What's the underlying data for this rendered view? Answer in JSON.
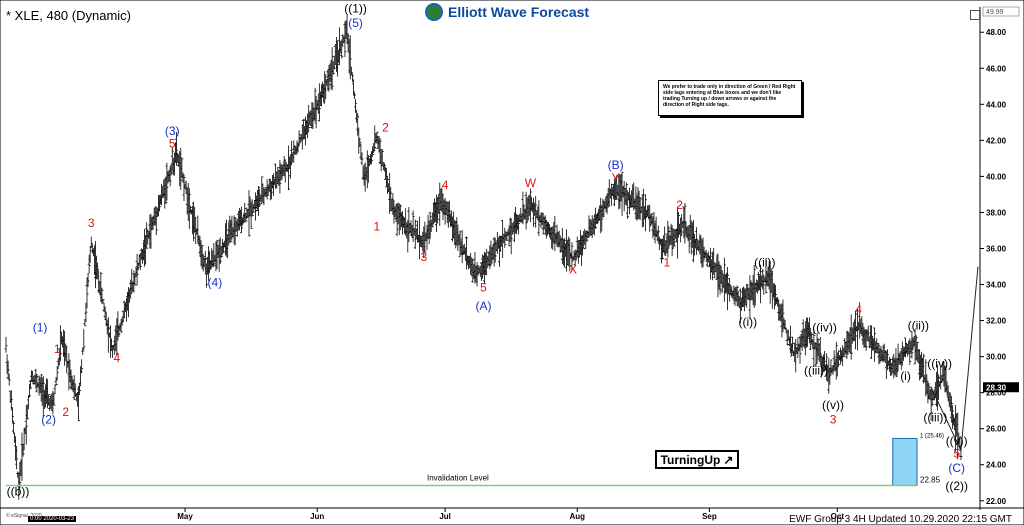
{
  "header": {
    "symbol": "* XLE, 480 (Dynamic)",
    "logo_text": "Elliott Wave Forecast"
  },
  "notice": "We prefer to trade only in direction of Green / Red Right side tags entering at Blue boxes and we don't like trading Turning up / down arrows or against the direction of Right side tags.",
  "turning_up": "TurningUp",
  "turning_up_arrow": "↗",
  "footer": "EWF Group 3 4H Updated 10.29.2020 22:15 GMT",
  "stamp": "© eSignal, 2020",
  "date_box": "0:00 2020-03-23",
  "colors": {
    "blue_box": "#8fd3f5",
    "green_line": "#7ccd7c",
    "wave_blue": "#1530c8",
    "wave_red": "#e01010",
    "price_tag": "#000000"
  },
  "chart_data": {
    "type": "bar",
    "subtype": "ohlc",
    "ylim": [
      21.6,
      49.4
    ],
    "yticks": [
      22,
      24,
      26,
      28,
      30,
      32,
      34,
      36,
      38,
      40,
      42,
      44,
      46,
      48
    ],
    "ytick_labels": [
      "22.00",
      "24.00",
      "26.00",
      "28.00",
      "30.00",
      "32.00",
      "34.00",
      "36.00",
      "38.00",
      "40.00",
      "42.00",
      "44.00",
      "46.00",
      "48.00"
    ],
    "x_range": [
      "2020-03-20",
      "2020-11-03"
    ],
    "xticks": [
      {
        "date": "2020-05-01",
        "label": "May"
      },
      {
        "date": "2020-06-01",
        "label": "Jun"
      },
      {
        "date": "2020-07-01",
        "label": "Jul"
      },
      {
        "date": "2020-08-01",
        "label": "Aug"
      },
      {
        "date": "2020-09-01",
        "label": "Sep"
      },
      {
        "date": "2020-10-01",
        "label": "Oct"
      }
    ],
    "price_path": [
      [
        "2020-03-20",
        30.5
      ],
      [
        "2020-03-23",
        22.88
      ],
      [
        "2020-03-26",
        29.0
      ],
      [
        "2020-03-31",
        27.2
      ],
      [
        "2020-04-02",
        31.0
      ],
      [
        "2020-04-06",
        27.3
      ],
      [
        "2020-04-09",
        36.4
      ],
      [
        "2020-04-14",
        30.3
      ],
      [
        "2020-04-20",
        35.0
      ],
      [
        "2020-04-29",
        41.3
      ],
      [
        "2020-05-06",
        34.8
      ],
      [
        "2020-05-14",
        37.5
      ],
      [
        "2020-05-25",
        40.5
      ],
      [
        "2020-06-02",
        44.5
      ],
      [
        "2020-06-08",
        48.0
      ],
      [
        "2020-06-12",
        39.8
      ],
      [
        "2020-06-15",
        42.2
      ],
      [
        "2020-06-19",
        38.0
      ],
      [
        "2020-06-26",
        36.3
      ],
      [
        "2020-06-30",
        38.8
      ],
      [
        "2020-07-08",
        34.5
      ],
      [
        "2020-07-21",
        38.4
      ],
      [
        "2020-07-24",
        37.5
      ],
      [
        "2020-07-31",
        35.4
      ],
      [
        "2020-08-10",
        39.4
      ],
      [
        "2020-08-18",
        37.8
      ],
      [
        "2020-08-21",
        36.0
      ],
      [
        "2020-08-26",
        37.3
      ],
      [
        "2020-09-08",
        33.0
      ],
      [
        "2020-09-15",
        34.5
      ],
      [
        "2020-09-21",
        30.0
      ],
      [
        "2020-09-24",
        31.4
      ],
      [
        "2020-09-29",
        29.0
      ],
      [
        "2020-10-06",
        31.7
      ],
      [
        "2020-10-14",
        29.4
      ],
      [
        "2020-10-19",
        30.8
      ],
      [
        "2020-10-23",
        27.6
      ],
      [
        "2020-10-26",
        29.0
      ],
      [
        "2020-10-30",
        24.8
      ],
      [
        "2020-11-03",
        35.0
      ]
    ],
    "current_price": "28.30",
    "top_right_value": "49.99",
    "blue_box": {
      "x_start": "2020-10-14",
      "x_end": "2020-11-03",
      "y_top": 25.46,
      "y_bottom": 22.85,
      "top_label": "1 (25.46)",
      "bottom_label": "22.85"
    },
    "invalidation": {
      "value": 22.85,
      "label": "Invalidation Level"
    },
    "projection": {
      "from": [
        "2020-10-23",
        28.3
      ],
      "via": [
        "2020-10-30",
        24.8
      ],
      "to": [
        "2020-11-03",
        35.0
      ]
    },
    "wave_labels": [
      {
        "text": "((b))",
        "date": "2020-03-20",
        "price": 22.3,
        "color": "black",
        "big": true
      },
      {
        "text": "(1)",
        "date": "2020-03-28",
        "price": 31.4,
        "color": "blue"
      },
      {
        "text": "1",
        "date": "2020-04-01",
        "price": 30.2,
        "color": "red"
      },
      {
        "text": "(2)",
        "date": "2020-03-30",
        "price": 26.3,
        "color": "blue"
      },
      {
        "text": "2",
        "date": "2020-04-03",
        "price": 26.7,
        "color": "red"
      },
      {
        "text": "3",
        "date": "2020-04-09",
        "price": 37.2,
        "color": "red"
      },
      {
        "text": "4",
        "date": "2020-04-15",
        "price": 29.7,
        "color": "red"
      },
      {
        "text": "(3)",
        "date": "2020-04-28",
        "price": 42.3,
        "color": "blue"
      },
      {
        "text": "5",
        "date": "2020-04-28",
        "price": 41.6,
        "color": "red"
      },
      {
        "text": "(4)",
        "date": "2020-05-08",
        "price": 33.9,
        "color": "blue"
      },
      {
        "text": "((1))",
        "date": "2020-06-10",
        "price": 49.1,
        "color": "black"
      },
      {
        "text": "(5)",
        "date": "2020-06-10",
        "price": 48.3,
        "color": "blue"
      },
      {
        "text": "2",
        "date": "2020-06-17",
        "price": 42.5,
        "color": "red"
      },
      {
        "text": "1",
        "date": "2020-06-15",
        "price": 37.0,
        "color": "red"
      },
      {
        "text": "4",
        "date": "2020-07-01",
        "price": 39.3,
        "color": "red"
      },
      {
        "text": "3",
        "date": "2020-06-26",
        "price": 35.3,
        "color": "red"
      },
      {
        "text": "5",
        "date": "2020-07-10",
        "price": 33.6,
        "color": "red"
      },
      {
        "text": "(A)",
        "date": "2020-07-10",
        "price": 32.6,
        "color": "blue"
      },
      {
        "text": "W",
        "date": "2020-07-21",
        "price": 39.4,
        "color": "red"
      },
      {
        "text": "X",
        "date": "2020-07-31",
        "price": 34.6,
        "color": "red"
      },
      {
        "text": "(B)",
        "date": "2020-08-10",
        "price": 40.4,
        "color": "blue"
      },
      {
        "text": "Y",
        "date": "2020-08-10",
        "price": 39.7,
        "color": "red"
      },
      {
        "text": "2",
        "date": "2020-08-25",
        "price": 38.2,
        "color": "red"
      },
      {
        "text": "1",
        "date": "2020-08-22",
        "price": 35.0,
        "color": "red"
      },
      {
        "text": "((ii))",
        "date": "2020-09-14",
        "price": 35.0,
        "color": "black"
      },
      {
        "text": "((i))",
        "date": "2020-09-10",
        "price": 31.7,
        "color": "black"
      },
      {
        "text": "((iv))",
        "date": "2020-09-28",
        "price": 31.4,
        "color": "black"
      },
      {
        "text": "((iii))",
        "date": "2020-09-26",
        "price": 29.0,
        "color": "black"
      },
      {
        "text": "4",
        "date": "2020-10-06",
        "price": 32.4,
        "color": "red"
      },
      {
        "text": "((v))",
        "date": "2020-09-30",
        "price": 27.1,
        "color": "black"
      },
      {
        "text": "3",
        "date": "2020-09-30",
        "price": 26.3,
        "color": "red"
      },
      {
        "text": "((ii))",
        "date": "2020-10-20",
        "price": 31.5,
        "color": "black"
      },
      {
        "text": "(i)",
        "date": "2020-10-17",
        "price": 28.7,
        "color": "black"
      },
      {
        "text": "((iv))",
        "date": "2020-10-25",
        "price": 29.4,
        "color": "black"
      },
      {
        "text": "((iii))",
        "date": "2020-10-24",
        "price": 26.4,
        "color": "black"
      },
      {
        "text": "((v))",
        "date": "2020-10-29",
        "price": 25.1,
        "color": "black"
      },
      {
        "text": "5",
        "date": "2020-10-29",
        "price": 24.4,
        "color": "red"
      },
      {
        "text": "(C)",
        "date": "2020-10-29",
        "price": 23.6,
        "color": "blue"
      },
      {
        "text": "((2))",
        "date": "2020-10-29",
        "price": 22.6,
        "color": "black"
      }
    ]
  }
}
